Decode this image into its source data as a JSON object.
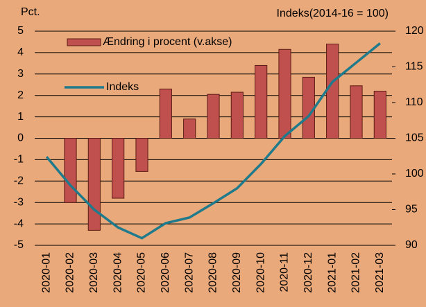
{
  "chart_data": {
    "type": "bar",
    "left_axis_label": "Pct.",
    "right_axis_label": "Indeks(2014-16 = 100)",
    "categories": [
      "2020-01",
      "2020-02",
      "2020-03",
      "2020-04",
      "2020-05",
      "2020-06",
      "2020-07",
      "2020-08",
      "2020-09",
      "2020-10",
      "2020-11",
      "2020-12",
      "2021-01",
      "2021-02",
      "2021-03"
    ],
    "series": [
      {
        "name": "Ændring i procent (v.akse)",
        "color": "#c0504d",
        "type": "bar",
        "values": [
          null,
          -3.0,
          -4.3,
          -2.8,
          -1.55,
          2.3,
          0.9,
          2.05,
          2.15,
          3.4,
          4.15,
          2.85,
          4.4,
          2.45,
          2.2
        ]
      },
      {
        "name": "Indeks",
        "color": "#1f7a8c",
        "type": "line",
        "axis": "y2",
        "values": [
          102.4,
          98.4,
          95.0,
          92.5,
          91.0,
          93.1,
          93.9,
          95.9,
          98.0,
          101.4,
          105.3,
          108.1,
          112.9,
          115.6,
          118.3
        ]
      }
    ],
    "ylim": [
      -5,
      5
    ],
    "yticks": [
      -5,
      -4,
      -3,
      -2,
      -1,
      0,
      1,
      2,
      3,
      4,
      5
    ],
    "y2lim": [
      90,
      120
    ],
    "y2ticks": [
      90,
      95,
      100,
      105,
      110,
      115,
      120
    ],
    "grid": true
  }
}
